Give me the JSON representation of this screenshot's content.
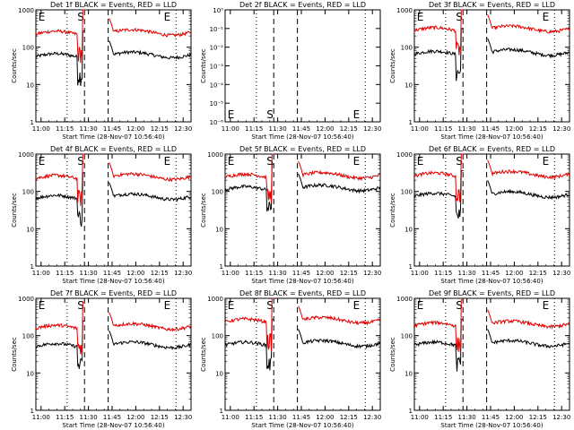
{
  "figure": {
    "xlabel": "Start Time (28-Nov-07 10:56:40)",
    "ylabel": "Counts/sec",
    "x_tick_labels": [
      "11:00",
      "11:15",
      "11:30",
      "11:45",
      "12:00",
      "12:15",
      "12:30"
    ],
    "y_tick_labels": [
      "1",
      "10",
      "100",
      "1000"
    ],
    "y_tick_labels_small": [
      "10⁻⁶",
      "10⁻⁵",
      "10⁻⁴",
      "10⁻³",
      "10⁻²",
      "10⁻¹",
      "10⁰"
    ],
    "marker_s": "S",
    "marker_e": "E",
    "colors": {
      "events": "#000000",
      "lld": "#e00000"
    }
  },
  "chart_data": [
    {
      "type": "line",
      "title": "Det 1f BLACK = Events, RED = LLD",
      "ylim": [
        1,
        1000
      ],
      "log_y": true,
      "series": [
        {
          "name": "Events",
          "base": 60
        },
        {
          "name": "LLD",
          "base": 240
        }
      ]
    },
    {
      "type": "line",
      "title": "Det 2f BLACK = Events, RED = LLD",
      "ylim": [
        1e-06,
        1
      ],
      "log_y": true,
      "series": []
    },
    {
      "type": "line",
      "title": "Det 3f BLACK = Events, RED = LLD",
      "ylim": [
        1,
        1000
      ],
      "log_y": true,
      "series": [
        {
          "name": "Events",
          "base": 70
        },
        {
          "name": "LLD",
          "base": 300
        }
      ]
    },
    {
      "type": "line",
      "title": "Det 4f BLACK = Events, RED = LLD",
      "ylim": [
        1,
        1000
      ],
      "log_y": true,
      "series": [
        {
          "name": "Events",
          "base": 70
        },
        {
          "name": "LLD",
          "base": 240
        }
      ]
    },
    {
      "type": "line",
      "title": "Det 5f BLACK = Events, RED = LLD",
      "ylim": [
        1,
        1000
      ],
      "log_y": true,
      "series": [
        {
          "name": "Events",
          "base": 120
        },
        {
          "name": "LLD",
          "base": 260
        }
      ]
    },
    {
      "type": "line",
      "title": "Det 6f BLACK = Events, RED = LLD",
      "ylim": [
        1,
        1000
      ],
      "log_y": true,
      "series": [
        {
          "name": "Events",
          "base": 80
        },
        {
          "name": "LLD",
          "base": 280
        }
      ]
    },
    {
      "type": "line",
      "title": "Det 7f BLACK = Events, RED = LLD",
      "ylim": [
        1,
        1000
      ],
      "log_y": true,
      "series": [
        {
          "name": "Events",
          "base": 55
        },
        {
          "name": "LLD",
          "base": 170
        }
      ]
    },
    {
      "type": "line",
      "title": "Det 8f BLACK = Events, RED = LLD",
      "ylim": [
        1,
        1000
      ],
      "log_y": true,
      "series": [
        {
          "name": "Events",
          "base": 60
        },
        {
          "name": "LLD",
          "base": 250
        }
      ]
    },
    {
      "type": "line",
      "title": "Det 9f BLACK = Events, RED = LLD",
      "ylim": [
        1,
        1000
      ],
      "log_y": true,
      "series": [
        {
          "name": "Events",
          "base": 60
        },
        {
          "name": "LLD",
          "base": 200
        }
      ]
    }
  ]
}
